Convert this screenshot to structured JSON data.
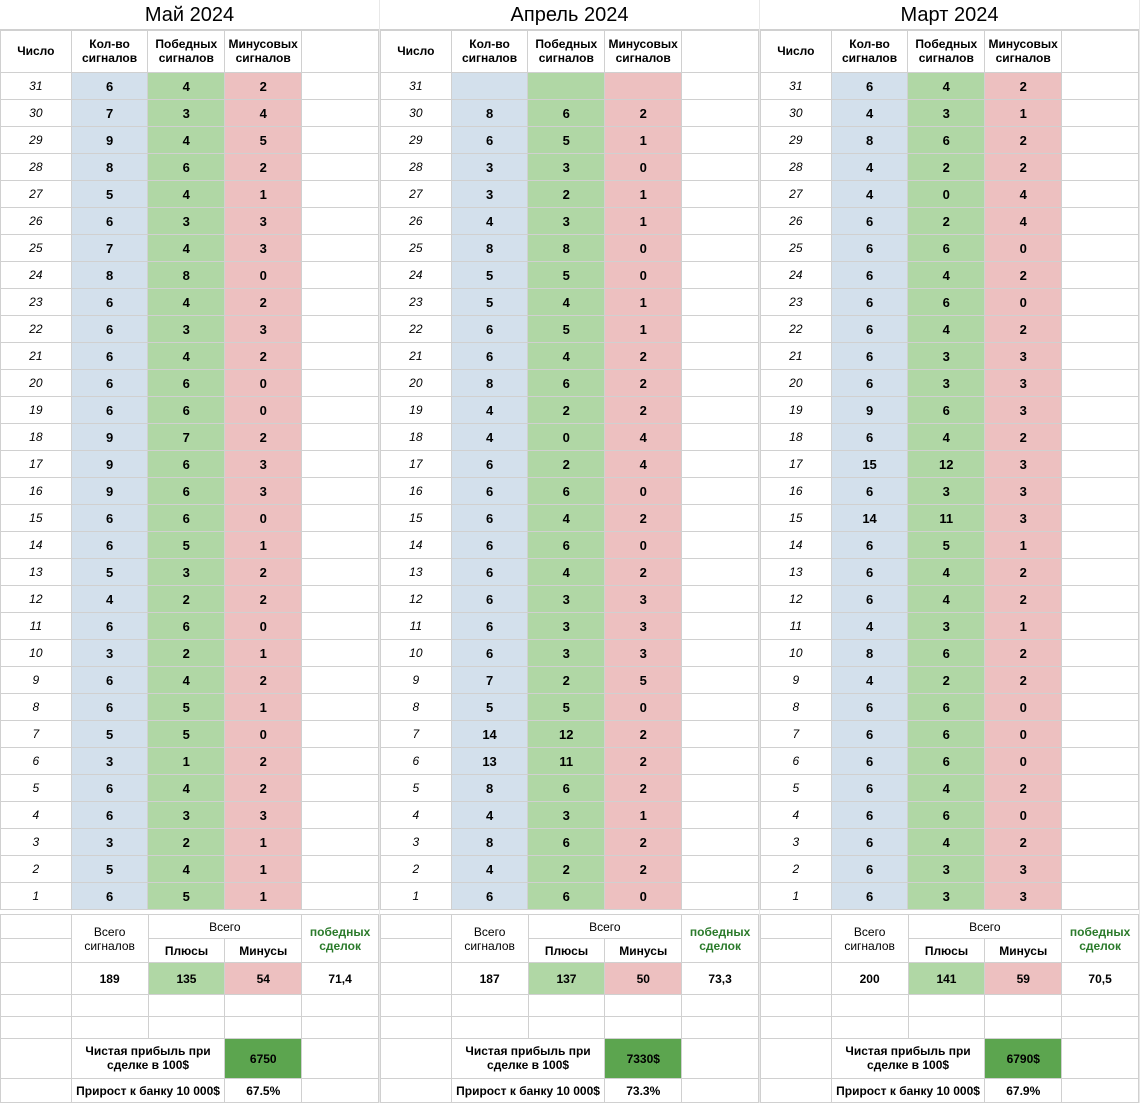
{
  "colors": {
    "blue": "#d3e0ec",
    "green": "#b0d7a5",
    "red": "#edc0c0",
    "dark_green": "#5ca54f",
    "border": "#d0d0d0",
    "deal_text": "#2a7a2a"
  },
  "headers": {
    "day": "Число",
    "signals": "Кол-во сигналов",
    "wins": "Победных сигналов",
    "losses": "Минусовых сигналов",
    "total": "Всего",
    "all_signals": "Всего сигналов",
    "plus": "Плюсы",
    "minus": "Минусы",
    "win_deals": "победных сделок",
    "profit": "Чистая прибыль при сделке в 100$",
    "growth": "Прирост к банку 10 000$"
  },
  "months": [
    {
      "title": "Май 2024",
      "rows": [
        {
          "d": 31,
          "t": "6",
          "w": "4",
          "l": "2"
        },
        {
          "d": 30,
          "t": "7",
          "w": "3",
          "l": "4"
        },
        {
          "d": 29,
          "t": "9",
          "w": "4",
          "l": "5"
        },
        {
          "d": 28,
          "t": "8",
          "w": "6",
          "l": "2"
        },
        {
          "d": 27,
          "t": "5",
          "w": "4",
          "l": "1"
        },
        {
          "d": 26,
          "t": "6",
          "w": "3",
          "l": "3"
        },
        {
          "d": 25,
          "t": "7",
          "w": "4",
          "l": "3"
        },
        {
          "d": 24,
          "t": "8",
          "w": "8",
          "l": "0"
        },
        {
          "d": 23,
          "t": "6",
          "w": "4",
          "l": "2"
        },
        {
          "d": 22,
          "t": "6",
          "w": "3",
          "l": "3"
        },
        {
          "d": 21,
          "t": "6",
          "w": "4",
          "l": "2"
        },
        {
          "d": 20,
          "t": "6",
          "w": "6",
          "l": "0"
        },
        {
          "d": 19,
          "t": "6",
          "w": "6",
          "l": "0"
        },
        {
          "d": 18,
          "t": "9",
          "w": "7",
          "l": "2"
        },
        {
          "d": 17,
          "t": "9",
          "w": "6",
          "l": "3"
        },
        {
          "d": 16,
          "t": "9",
          "w": "6",
          "l": "3"
        },
        {
          "d": 15,
          "t": "6",
          "w": "6",
          "l": "0"
        },
        {
          "d": 14,
          "t": "6",
          "w": "5",
          "l": "1"
        },
        {
          "d": 13,
          "t": "5",
          "w": "3",
          "l": "2"
        },
        {
          "d": 12,
          "t": "4",
          "w": "2",
          "l": "2"
        },
        {
          "d": 11,
          "t": "6",
          "w": "6",
          "l": "0"
        },
        {
          "d": 10,
          "t": "3",
          "w": "2",
          "l": "1"
        },
        {
          "d": 9,
          "t": "6",
          "w": "4",
          "l": "2"
        },
        {
          "d": 8,
          "t": "6",
          "w": "5",
          "l": "1"
        },
        {
          "d": 7,
          "t": "5",
          "w": "5",
          "l": "0"
        },
        {
          "d": 6,
          "t": "3",
          "w": "1",
          "l": "2"
        },
        {
          "d": 5,
          "t": "6",
          "w": "4",
          "l": "2"
        },
        {
          "d": 4,
          "t": "6",
          "w": "3",
          "l": "3"
        },
        {
          "d": 3,
          "t": "3",
          "w": "2",
          "l": "1"
        },
        {
          "d": 2,
          "t": "5",
          "w": "4",
          "l": "1"
        },
        {
          "d": 1,
          "t": "6",
          "w": "5",
          "l": "1"
        }
      ],
      "sum_signals": "189",
      "sum_plus": "135",
      "sum_minus": "54",
      "win_pct": "71,4",
      "profit": "6750",
      "growth_pct": "67.5%"
    },
    {
      "title": "Апрель 2024",
      "rows": [
        {
          "d": 31,
          "t": "",
          "w": "",
          "l": ""
        },
        {
          "d": 30,
          "t": "8",
          "w": "6",
          "l": "2"
        },
        {
          "d": 29,
          "t": "6",
          "w": "5",
          "l": "1"
        },
        {
          "d": 28,
          "t": "3",
          "w": "3",
          "l": "0"
        },
        {
          "d": 27,
          "t": "3",
          "w": "2",
          "l": "1"
        },
        {
          "d": 26,
          "t": "4",
          "w": "3",
          "l": "1"
        },
        {
          "d": 25,
          "t": "8",
          "w": "8",
          "l": "0"
        },
        {
          "d": 24,
          "t": "5",
          "w": "5",
          "l": "0"
        },
        {
          "d": 23,
          "t": "5",
          "w": "4",
          "l": "1"
        },
        {
          "d": 22,
          "t": "6",
          "w": "5",
          "l": "1"
        },
        {
          "d": 21,
          "t": "6",
          "w": "4",
          "l": "2"
        },
        {
          "d": 20,
          "t": "8",
          "w": "6",
          "l": "2"
        },
        {
          "d": 19,
          "t": "4",
          "w": "2",
          "l": "2"
        },
        {
          "d": 18,
          "t": "4",
          "w": "0",
          "l": "4"
        },
        {
          "d": 17,
          "t": "6",
          "w": "2",
          "l": "4"
        },
        {
          "d": 16,
          "t": "6",
          "w": "6",
          "l": "0"
        },
        {
          "d": 15,
          "t": "6",
          "w": "4",
          "l": "2"
        },
        {
          "d": 14,
          "t": "6",
          "w": "6",
          "l": "0"
        },
        {
          "d": 13,
          "t": "6",
          "w": "4",
          "l": "2"
        },
        {
          "d": 12,
          "t": "6",
          "w": "3",
          "l": "3"
        },
        {
          "d": 11,
          "t": "6",
          "w": "3",
          "l": "3"
        },
        {
          "d": 10,
          "t": "6",
          "w": "3",
          "l": "3"
        },
        {
          "d": 9,
          "t": "7",
          "w": "2",
          "l": "5"
        },
        {
          "d": 8,
          "t": "5",
          "w": "5",
          "l": "0"
        },
        {
          "d": 7,
          "t": "14",
          "w": "12",
          "l": "2"
        },
        {
          "d": 6,
          "t": "13",
          "w": "11",
          "l": "2"
        },
        {
          "d": 5,
          "t": "8",
          "w": "6",
          "l": "2"
        },
        {
          "d": 4,
          "t": "4",
          "w": "3",
          "l": "1"
        },
        {
          "d": 3,
          "t": "8",
          "w": "6",
          "l": "2"
        },
        {
          "d": 2,
          "t": "4",
          "w": "2",
          "l": "2"
        },
        {
          "d": 1,
          "t": "6",
          "w": "6",
          "l": "0"
        }
      ],
      "sum_signals": "187",
      "sum_plus": "137",
      "sum_minus": "50",
      "win_pct": "73,3",
      "profit": "7330$",
      "growth_pct": "73.3%"
    },
    {
      "title": "Март 2024",
      "rows": [
        {
          "d": 31,
          "t": "6",
          "w": "4",
          "l": "2"
        },
        {
          "d": 30,
          "t": "4",
          "w": "3",
          "l": "1"
        },
        {
          "d": 29,
          "t": "8",
          "w": "6",
          "l": "2"
        },
        {
          "d": 28,
          "t": "4",
          "w": "2",
          "l": "2"
        },
        {
          "d": 27,
          "t": "4",
          "w": "0",
          "l": "4"
        },
        {
          "d": 26,
          "t": "6",
          "w": "2",
          "l": "4"
        },
        {
          "d": 25,
          "t": "6",
          "w": "6",
          "l": "0"
        },
        {
          "d": 24,
          "t": "6",
          "w": "4",
          "l": "2"
        },
        {
          "d": 23,
          "t": "6",
          "w": "6",
          "l": "0"
        },
        {
          "d": 22,
          "t": "6",
          "w": "4",
          "l": "2"
        },
        {
          "d": 21,
          "t": "6",
          "w": "3",
          "l": "3"
        },
        {
          "d": 20,
          "t": "6",
          "w": "3",
          "l": "3"
        },
        {
          "d": 19,
          "t": "9",
          "w": "6",
          "l": "3"
        },
        {
          "d": 18,
          "t": "6",
          "w": "4",
          "l": "2"
        },
        {
          "d": 17,
          "t": "15",
          "w": "12",
          "l": "3"
        },
        {
          "d": 16,
          "t": "6",
          "w": "3",
          "l": "3"
        },
        {
          "d": 15,
          "t": "14",
          "w": "11",
          "l": "3"
        },
        {
          "d": 14,
          "t": "6",
          "w": "5",
          "l": "1"
        },
        {
          "d": 13,
          "t": "6",
          "w": "4",
          "l": "2"
        },
        {
          "d": 12,
          "t": "6",
          "w": "4",
          "l": "2"
        },
        {
          "d": 11,
          "t": "4",
          "w": "3",
          "l": "1"
        },
        {
          "d": 10,
          "t": "8",
          "w": "6",
          "l": "2"
        },
        {
          "d": 9,
          "t": "4",
          "w": "2",
          "l": "2"
        },
        {
          "d": 8,
          "t": "6",
          "w": "6",
          "l": "0"
        },
        {
          "d": 7,
          "t": "6",
          "w": "6",
          "l": "0"
        },
        {
          "d": 6,
          "t": "6",
          "w": "6",
          "l": "0"
        },
        {
          "d": 5,
          "t": "6",
          "w": "4",
          "l": "2"
        },
        {
          "d": 4,
          "t": "6",
          "w": "6",
          "l": "0"
        },
        {
          "d": 3,
          "t": "6",
          "w": "4",
          "l": "2"
        },
        {
          "d": 2,
          "t": "6",
          "w": "3",
          "l": "3"
        },
        {
          "d": 1,
          "t": "6",
          "w": "3",
          "l": "3"
        }
      ],
      "sum_signals": "200",
      "sum_plus": "141",
      "sum_minus": "59",
      "win_pct": "70,5",
      "profit": "6790$",
      "growth_pct": "67.9%"
    }
  ]
}
